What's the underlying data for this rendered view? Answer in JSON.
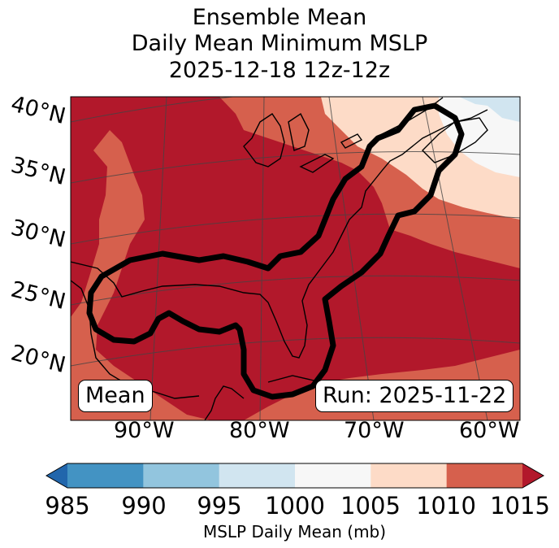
{
  "title": {
    "line1": "Ensemble Mean",
    "line2": "Daily Mean Minimum MSLP",
    "line3": "2025-12-18 12z-12z"
  },
  "map": {
    "latitude_labels": [
      "40°N",
      "35°N",
      "30°N",
      "25°N",
      "20°N"
    ],
    "longitude_labels": [
      "90°W",
      "80°W",
      "70°W",
      "60°W"
    ],
    "mean_label": "Mean",
    "run_label": "Run: 2025-11-22",
    "fill_colors": {
      "lt1000": "#f7f7f7",
      "1000_1005": "#f7f7f7",
      "1005_1010": "#fddbc7",
      "1010_1015": "#d6604d",
      "gt1015": "#b2182b",
      "995_1000": "#d1e5f0"
    }
  },
  "colorbar": {
    "ticks": [
      "985",
      "990",
      "995",
      "1000",
      "1005",
      "1010",
      "1015"
    ],
    "label": "MSLP Daily Mean (mb)",
    "colors": [
      "#2166ac",
      "#4393c3",
      "#92c5de",
      "#d1e5f0",
      "#f7f7f7",
      "#fddbc7",
      "#d6604d",
      "#b2182b"
    ]
  }
}
